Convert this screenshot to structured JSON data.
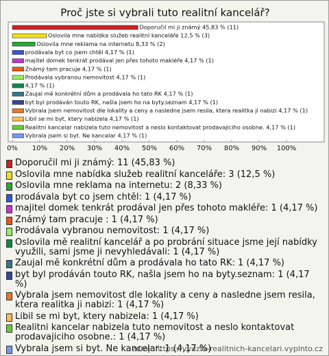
{
  "chart_data": {
    "type": "hbar",
    "title": "Proč jste si vybrali tuto realitní kancelář?",
    "values": [
      45.83,
      12.5,
      8.33,
      4.17,
      4.17,
      4.17,
      4.17,
      4.17,
      4.17,
      4.17,
      4.17,
      4.17,
      4.17,
      4.17
    ],
    "value_labels": [
      "Doporučil mi ji známý 45,83 % (11)",
      "Oslovila mne nabídka služeb realitní kanceláře 12,5 % (3)",
      "Oslovila mne reklama na internetu 8,33 % (2)",
      "prodávala byt co jsem chtěl 4,17 % (1)",
      "majitel domek tenkrát prodával jen přes tohoto makléře 4,17 % (1)",
      "Známý tam pracuje  4,17 % (1)",
      "Prodávala vybranou nemovitost 4,17 % (1)",
      "4,17 % (1)",
      "Zaujal mě konkrétní dům a prodávala ho tato RK 4,17 % (1)",
      "byt byl prodáván touto RK, našla jsem ho na byty.seznam 4,17 % (1)",
      "Vybrala jsem nemovitost dle lokality a ceny a nasledne jsem resila, ktera realitka ji nabizi 4,17 % (1)",
      "Libil se mi byt, ktery nabizela 4,17 % (1)",
      "Realitni kancelar nabizela tuto nemovitost a neslo kontaktovat prodavajiciho osobne. 4,17 % (1)",
      "Vybrala jsem si byt. Ne kancelar 4,17 % (1)"
    ],
    "legend_labels": [
      "Doporučil mi ji známý: 11 (45,83 %)",
      "Oslovila mne nabídka služeb realitní kanceláře: 3 (12,5 %)",
      "Oslovila mne reklama na internetu: 2 (8,33 %)",
      "prodávala byt co jsem chtěl: 1 (4,17 %)",
      "majitel domek tenkrát prodával jen přes tohoto makléře: 1 (4,17 %)",
      "Známý tam pracuje : 1 (4,17 %)",
      "Prodávala vybranou nemovitost: 1 (4,17 %)",
      "Oslovila mě realitní kancelář a po probrání situace jsme její nabídky využili, sami jsme ji nevyhledávali: 1 (4,17 %)",
      "Zaujal mě konkrétní dům a prodávala ho tato RK: 1 (4,17 %)",
      "byt byl prodáván touto RK, našla jsem ho na byty.seznam: 1 (4,17 %)",
      "Vybrala jsem nemovitost dle lokality a ceny a nasledne jsem resila, ktera realitka ji nabizi: 1 (4,17 %)",
      "Libil se mi byt, ktery nabizela: 1 (4,17 %)",
      "Realitni kancelar nabizela tuto nemovitost a neslo kontaktovat prodavajiciho osobne.: 1 (4,17 %)",
      "Vybrala jsem si byt. Ne kancelar: 1 (4,17 %)"
    ],
    "colors": [
      "#cc2222",
      "#f0e020",
      "#22aa33",
      "#3355dd",
      "#cc33cc",
      "#ee5511",
      "#99ee66",
      "#118844",
      "#337788",
      "#334499",
      "#ee7722",
      "#ffbb55",
      "#66cc33",
      "#7799ee"
    ],
    "xlim": [
      0,
      100
    ],
    "xticks": [
      {
        "value": 0,
        "label": "0%"
      },
      {
        "value": 10,
        "label": "10%"
      },
      {
        "value": 20,
        "label": "20%"
      },
      {
        "value": 30,
        "label": "30%"
      },
      {
        "value": 40,
        "label": "40%"
      },
      {
        "value": 50,
        "label": "50%"
      },
      {
        "value": 60,
        "label": "60%"
      },
      {
        "value": 70,
        "label": "70%"
      },
      {
        "value": 80,
        "label": "80%"
      },
      {
        "value": 90,
        "label": "90%"
      },
      {
        "value": 100,
        "label": "100%"
      }
    ],
    "grid": false,
    "source": "zdroj: https://vyuziti-realitnich-kancelari.vyplnto.cz"
  }
}
